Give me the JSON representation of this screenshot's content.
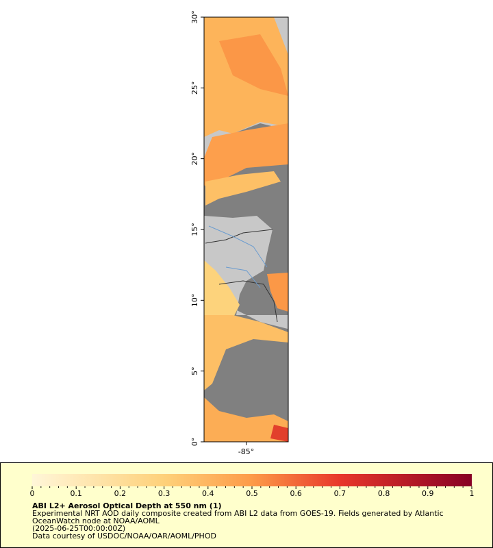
{
  "map": {
    "lat_ticks": [
      {
        "value": 0,
        "label": "0°"
      },
      {
        "value": 5,
        "label": "5°"
      },
      {
        "value": 10,
        "label": "10°"
      },
      {
        "value": 15,
        "label": "15°"
      },
      {
        "value": 20,
        "label": "20°"
      },
      {
        "value": 25,
        "label": "25°"
      },
      {
        "value": 30,
        "label": "30°"
      }
    ],
    "lon_range": [
      -88,
      -82
    ],
    "lon_ticks": [
      {
        "value": -85,
        "label": "-85°"
      }
    ]
  },
  "colorbar": {
    "ticks": [
      0,
      0.1,
      0.2,
      0.3,
      0.4,
      0.5,
      0.6,
      0.7,
      0.8,
      0.9,
      1
    ]
  },
  "legend": {
    "title": "ABI L2+ Aerosol Optical Depth at 550 nm (1)",
    "lines": [
      "Experimental NRT AOD daily composite created from ABI L2 data from GOES-19. Fields generated by Atlantic",
      "OceanWatch node at NOAA/AOML",
      "(2025-06-25T00:00:00Z)",
      "Data courtesy of USDOC/NOAA/OAR/AOML/PHOD"
    ]
  }
}
